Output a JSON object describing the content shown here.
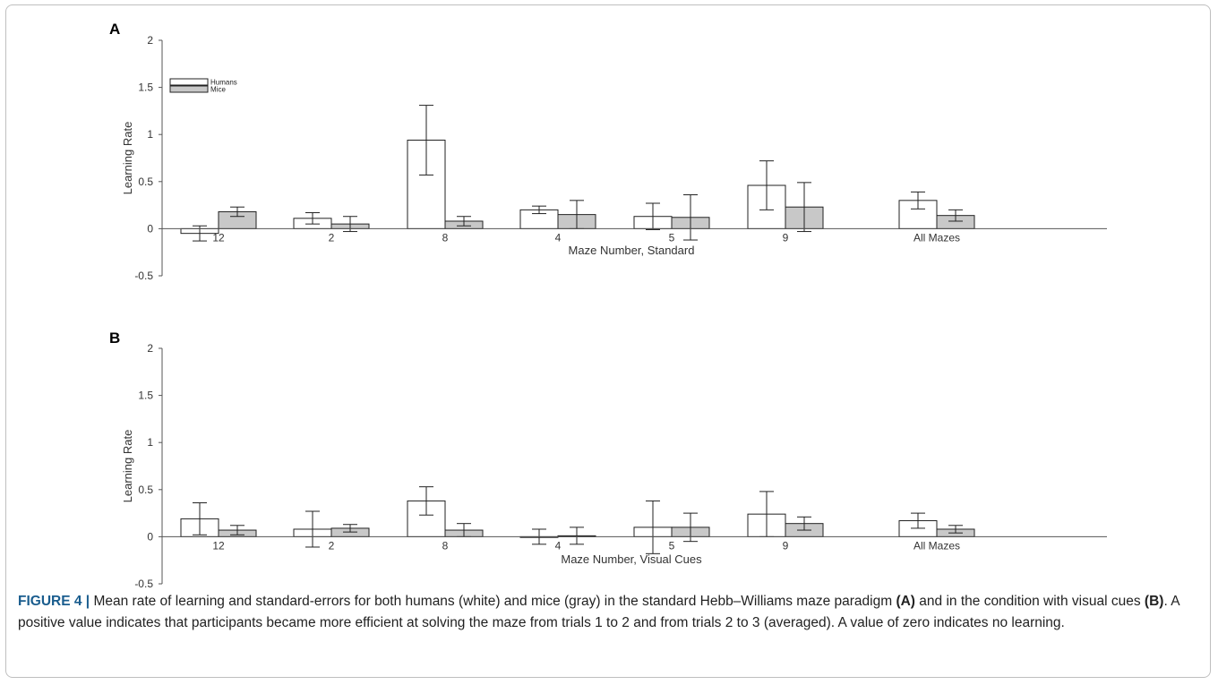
{
  "legend": {
    "series_colors": {
      "Humans": "#ffffff",
      "Mice": "#c8c8c8"
    }
  },
  "chart_data": [
    {
      "type": "bar",
      "panel": "A",
      "categories": [
        "12",
        "2",
        "8",
        "4",
        "5",
        "9",
        "All Mazes"
      ],
      "series": [
        {
          "name": "Humans",
          "values": [
            -0.05,
            0.11,
            0.94,
            0.2,
            0.13,
            0.46,
            0.3
          ],
          "error": [
            0.08,
            0.06,
            0.37,
            0.04,
            0.14,
            0.26,
            0.09
          ]
        },
        {
          "name": "Mice",
          "values": [
            0.18,
            0.05,
            0.08,
            0.15,
            0.12,
            0.23,
            0.14
          ],
          "error": [
            0.05,
            0.08,
            0.05,
            0.15,
            0.24,
            0.26,
            0.06
          ]
        }
      ],
      "xlabel": "Maze Number, Standard",
      "ylabel": "Learning Rate",
      "ylim": [
        -0.5,
        2
      ],
      "yticks": [
        "2",
        "1.5",
        "1",
        "0.5",
        "0",
        "-0.5"
      ],
      "legend_position": "top-left"
    },
    {
      "type": "bar",
      "panel": "B",
      "categories": [
        "12",
        "2",
        "8",
        "4",
        "5",
        "9",
        "All Mazes"
      ],
      "series": [
        {
          "name": "Humans",
          "values": [
            0.19,
            0.08,
            0.38,
            0.0,
            0.1,
            0.24,
            0.17
          ],
          "error": [
            0.17,
            0.19,
            0.15,
            0.08,
            0.28,
            0.24,
            0.08
          ]
        },
        {
          "name": "Mice",
          "values": [
            0.07,
            0.09,
            0.07,
            0.01,
            0.1,
            0.14,
            0.08
          ],
          "error": [
            0.05,
            0.04,
            0.07,
            0.09,
            0.15,
            0.07,
            0.04
          ]
        }
      ],
      "xlabel": "Maze Number, Visual Cues",
      "ylabel": "Learning Rate",
      "ylim": [
        -0.5,
        2
      ],
      "yticks": [
        "2",
        "1.5",
        "1",
        "0.5",
        "0",
        "-0.5"
      ]
    }
  ],
  "caption": {
    "label": "FIGURE 4 |",
    "part1": "Mean rate of learning and standard-errors for both humans (white) and mice (gray) in the standard Hebb–Williams maze paradigm",
    "ref_a": "(A)",
    "part2": "and in the condition with visual cues",
    "ref_b": "(B)",
    "part3": ". A positive value indicates that participants became more efficient at solving the maze from trials 1 to 2 and from trials 2 to 3 (averaged). A value of zero indicates no learning."
  }
}
